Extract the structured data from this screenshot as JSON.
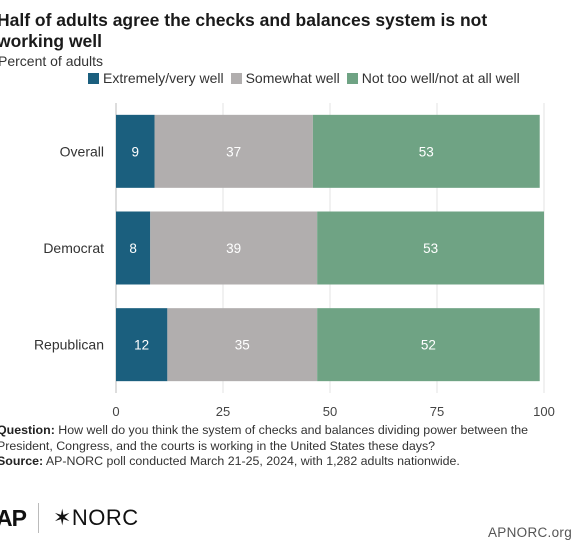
{
  "title": "Half of adults agree the checks and balances system is not working well",
  "subtitle": "Percent of adults",
  "chart_data": {
    "type": "bar",
    "orientation": "horizontal",
    "stacked": true,
    "categories": [
      "Overall",
      "Democrat",
      "Republican"
    ],
    "series": [
      {
        "name": "Extremely/very well",
        "values": [
          9,
          8,
          12
        ],
        "color": "#1b5f7e"
      },
      {
        "name": "Somewhat well",
        "values": [
          37,
          39,
          35
        ],
        "color": "#b1aeae"
      },
      {
        "name": "Not too well/not at all well",
        "values": [
          53,
          53,
          52
        ],
        "color": "#6fa384"
      }
    ],
    "xlim": [
      0,
      100
    ],
    "xticks": [
      "0",
      "25",
      "50",
      "75",
      "100"
    ],
    "grid": true,
    "legend_position": "top"
  },
  "notes": {
    "question_label": "Question:",
    "question_text": "How well do you think the system of checks and balances dividing power between the President, Congress, and the courts is working in the United States these days?",
    "source_label": "Source:",
    "source_text": "AP-NORC poll conducted March 21-25, 2024, with 1,282 adults nationwide."
  },
  "logos": {
    "ap": "AP",
    "norc": "✶NORC"
  },
  "footer_url": "APNORC.org"
}
